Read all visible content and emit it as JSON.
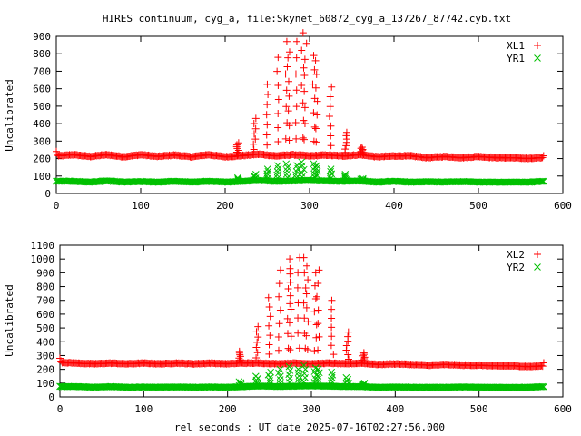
{
  "title": "HIRES continuum, cyg_a, file:Skynet_60872_cyg_a_137267_87742.cyb.txt",
  "xlabel": "rel seconds : UT date 2025-07-16T02:27:56.000",
  "colors": {
    "red": "#ff0000",
    "green": "#00c000"
  },
  "chart_data": [
    {
      "type": "scatter",
      "ylabel": "Uncalibrated",
      "xlim": [
        0,
        600
      ],
      "ylim": [
        0,
        900
      ],
      "xticks": [
        0,
        100,
        200,
        300,
        400,
        500,
        600
      ],
      "yticks": [
        0,
        100,
        200,
        300,
        400,
        500,
        600,
        700,
        800,
        900
      ],
      "legend_position": "top-right",
      "series": [
        {
          "name": "XL1",
          "marker": "+",
          "color": "#ff0000",
          "baseline": [
            [
              0,
              240
            ],
            [
              2,
              215
            ],
            [
              20,
              222
            ],
            [
              40,
              212
            ],
            [
              60,
              222
            ],
            [
              80,
              210
            ],
            [
              100,
              222
            ],
            [
              120,
              212
            ],
            [
              140,
              220
            ],
            [
              160,
              210
            ],
            [
              180,
              222
            ],
            [
              200,
              210
            ],
            [
              215,
              215
            ],
            [
              240,
              225
            ],
            [
              260,
              215
            ],
            [
              280,
              222
            ],
            [
              300,
              215
            ],
            [
              320,
              220
            ],
            [
              340,
              215
            ],
            [
              360,
              222
            ],
            [
              380,
              210
            ],
            [
              400,
              215
            ],
            [
              420,
              215
            ],
            [
              440,
              205
            ],
            [
              460,
              212
            ],
            [
              480,
              205
            ],
            [
              500,
              212
            ],
            [
              520,
              205
            ],
            [
              540,
              205
            ],
            [
              560,
              200
            ],
            [
              576,
              205
            ],
            [
              578,
              225
            ]
          ],
          "spikes": [
            [
              215,
              290
            ],
            [
              235,
              430
            ],
            [
              250,
              625
            ],
            [
              262,
              780
            ],
            [
              273,
              870
            ],
            [
              275,
              810
            ],
            [
              285,
              870
            ],
            [
              292,
              920
            ],
            [
              295,
              860
            ],
            [
              305,
              790
            ],
            [
              308,
              760
            ],
            [
              325,
              610
            ],
            [
              343,
              350
            ],
            [
              362,
              265
            ]
          ]
        },
        {
          "name": "YR1",
          "marker": "x",
          "color": "#00c000",
          "baseline": [
            [
              0,
              70
            ],
            [
              20,
              70
            ],
            [
              40,
              65
            ],
            [
              60,
              72
            ],
            [
              80,
              65
            ],
            [
              100,
              68
            ],
            [
              120,
              65
            ],
            [
              140,
              70
            ],
            [
              160,
              65
            ],
            [
              180,
              70
            ],
            [
              200,
              65
            ],
            [
              220,
              70
            ],
            [
              240,
              75
            ],
            [
              260,
              70
            ],
            [
              280,
              72
            ],
            [
              300,
              75
            ],
            [
              320,
              72
            ],
            [
              340,
              70
            ],
            [
              360,
              72
            ],
            [
              380,
              65
            ],
            [
              400,
              70
            ],
            [
              420,
              65
            ],
            [
              440,
              68
            ],
            [
              460,
              65
            ],
            [
              480,
              68
            ],
            [
              500,
              65
            ],
            [
              520,
              65
            ],
            [
              540,
              65
            ],
            [
              560,
              65
            ],
            [
              578,
              70
            ]
          ],
          "spikes": [
            [
              215,
              90
            ],
            [
              235,
              110
            ],
            [
              250,
              140
            ],
            [
              262,
              160
            ],
            [
              273,
              170
            ],
            [
              285,
              160
            ],
            [
              292,
              180
            ],
            [
              305,
              170
            ],
            [
              308,
              160
            ],
            [
              325,
              140
            ],
            [
              343,
              110
            ],
            [
              362,
              85
            ]
          ]
        }
      ]
    },
    {
      "type": "scatter",
      "ylabel": "Uncalibrated",
      "xlim": [
        0,
        600
      ],
      "ylim": [
        0,
        1100
      ],
      "xticks": [
        0,
        100,
        200,
        300,
        400,
        500,
        600
      ],
      "yticks": [
        0,
        100,
        200,
        300,
        400,
        500,
        600,
        700,
        800,
        900,
        1000,
        1100
      ],
      "legend_position": "top-right",
      "series": [
        {
          "name": "XL2",
          "marker": "+",
          "color": "#ff0000",
          "baseline": [
            [
              0,
              280
            ],
            [
              2,
              250
            ],
            [
              20,
              245
            ],
            [
              40,
              240
            ],
            [
              60,
              245
            ],
            [
              80,
              240
            ],
            [
              100,
              245
            ],
            [
              120,
              240
            ],
            [
              140,
              245
            ],
            [
              160,
              240
            ],
            [
              180,
              245
            ],
            [
              200,
              240
            ],
            [
              215,
              245
            ],
            [
              240,
              245
            ],
            [
              260,
              240
            ],
            [
              280,
              245
            ],
            [
              300,
              240
            ],
            [
              320,
              245
            ],
            [
              340,
              240
            ],
            [
              360,
              245
            ],
            [
              380,
              235
            ],
            [
              400,
              240
            ],
            [
              420,
              235
            ],
            [
              440,
              230
            ],
            [
              460,
              235
            ],
            [
              480,
              230
            ],
            [
              500,
              230
            ],
            [
              520,
              225
            ],
            [
              540,
              225
            ],
            [
              560,
              220
            ],
            [
              576,
              225
            ],
            [
              578,
              260
            ]
          ],
          "spikes": [
            [
              215,
              330
            ],
            [
              235,
              510
            ],
            [
              250,
              720
            ],
            [
              262,
              920
            ],
            [
              273,
              1000
            ],
            [
              275,
              930
            ],
            [
              285,
              1010
            ],
            [
              292,
              1010
            ],
            [
              295,
              950
            ],
            [
              305,
              900
            ],
            [
              308,
              920
            ],
            [
              325,
              700
            ],
            [
              343,
              470
            ],
            [
              362,
              320
            ]
          ]
        },
        {
          "name": "YR2",
          "marker": "x",
          "color": "#00c000",
          "baseline": [
            [
              0,
              75
            ],
            [
              20,
              75
            ],
            [
              40,
              70
            ],
            [
              60,
              75
            ],
            [
              80,
              70
            ],
            [
              100,
              72
            ],
            [
              120,
              70
            ],
            [
              140,
              72
            ],
            [
              160,
              70
            ],
            [
              180,
              72
            ],
            [
              200,
              70
            ],
            [
              220,
              75
            ],
            [
              240,
              80
            ],
            [
              260,
              75
            ],
            [
              280,
              78
            ],
            [
              300,
              80
            ],
            [
              320,
              78
            ],
            [
              340,
              75
            ],
            [
              360,
              75
            ],
            [
              380,
              70
            ],
            [
              400,
              72
            ],
            [
              420,
              70
            ],
            [
              440,
              70
            ],
            [
              460,
              70
            ],
            [
              480,
              72
            ],
            [
              500,
              70
            ],
            [
              520,
              70
            ],
            [
              540,
              70
            ],
            [
              560,
              70
            ],
            [
              578,
              75
            ]
          ],
          "spikes": [
            [
              215,
              110
            ],
            [
              235,
              150
            ],
            [
              250,
              180
            ],
            [
              262,
              200
            ],
            [
              273,
              220
            ],
            [
              285,
              200
            ],
            [
              292,
              230
            ],
            [
              305,
              210
            ],
            [
              308,
              200
            ],
            [
              325,
              180
            ],
            [
              343,
              140
            ],
            [
              362,
              100
            ]
          ]
        }
      ]
    }
  ]
}
